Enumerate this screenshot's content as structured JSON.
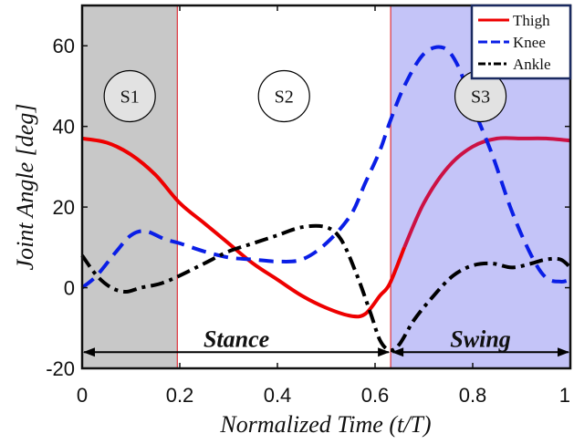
{
  "chart_data": {
    "type": "line",
    "xlabel": "Normalized Time (t/T)",
    "ylabel_word": "Joint Angle",
    "ylabel_unit": "[deg]",
    "xlim": [
      0,
      1
    ],
    "ylim": [
      -20,
      70
    ],
    "xticks": [
      0,
      0.2,
      0.4,
      0.6,
      0.8,
      1
    ],
    "xtick_labels": [
      "0",
      "0.2",
      "0.4",
      "0.6",
      "0.8",
      "1"
    ],
    "yticks": [
      -20,
      0,
      20,
      40,
      60
    ],
    "ytick_labels": [
      "-20",
      "0",
      "20",
      "40",
      "60"
    ],
    "grid": false,
    "legend_position": "top-right",
    "phases": [
      {
        "label": "S1",
        "x_start": 0,
        "x_end": 0.195,
        "color": "#c8c8c8"
      },
      {
        "label": "S2",
        "x_start": 0.195,
        "x_end": 0.632,
        "color": "#ffffff"
      },
      {
        "label": "S3",
        "x_start": 0.632,
        "x_end": 1,
        "color": "#c4c4f8"
      }
    ],
    "spans": [
      {
        "label": "Stance",
        "x_start": 0,
        "x_end": 0.632,
        "y": -16
      },
      {
        "label": "Swing",
        "x_start": 0.632,
        "x_end": 1,
        "y": -16
      }
    ],
    "series": [
      {
        "name": "Thigh",
        "color": "#ee0000",
        "color_swing": "#cc1144",
        "dash": "solid",
        "x": [
          0,
          0.05,
          0.1,
          0.15,
          0.2,
          0.25,
          0.3,
          0.35,
          0.4,
          0.45,
          0.5,
          0.55,
          0.58,
          0.61,
          0.63,
          0.66,
          0.7,
          0.75,
          0.8,
          0.85,
          0.9,
          0.95,
          1
        ],
        "y": [
          37,
          36,
          33,
          28,
          21,
          16,
          11,
          6,
          2,
          -2,
          -5,
          -7,
          -6.5,
          -2,
          1,
          10,
          21,
          30,
          35,
          37,
          37,
          37,
          36.5
        ]
      },
      {
        "name": "Knee",
        "color": "#0a1ee6",
        "dash": "dashed",
        "x": [
          0,
          0.03,
          0.07,
          0.1,
          0.13,
          0.17,
          0.2,
          0.25,
          0.3,
          0.35,
          0.4,
          0.45,
          0.5,
          0.55,
          0.58,
          0.61,
          0.63,
          0.66,
          0.7,
          0.74,
          0.77,
          0.8,
          0.84,
          0.88,
          0.92,
          0.95,
          0.98,
          1
        ],
        "y": [
          0,
          3,
          9,
          13,
          14,
          12,
          11,
          9,
          7.5,
          7,
          6.5,
          7,
          11,
          18,
          26,
          34,
          41,
          50,
          58,
          59.5,
          55,
          45,
          33,
          19,
          8,
          2.5,
          1.5,
          2
        ]
      },
      {
        "name": "Ankle",
        "color": "#000000",
        "dash": "dashdot",
        "x": [
          0,
          0.03,
          0.06,
          0.09,
          0.12,
          0.16,
          0.2,
          0.25,
          0.3,
          0.35,
          0.4,
          0.45,
          0.5,
          0.53,
          0.56,
          0.59,
          0.61,
          0.63,
          0.65,
          0.68,
          0.72,
          0.76,
          0.8,
          0.84,
          0.88,
          0.92,
          0.95,
          0.98,
          1
        ],
        "y": [
          8,
          3,
          0,
          -1,
          0,
          1,
          3,
          6,
          9,
          11,
          13,
          15,
          15,
          12,
          4,
          -6,
          -13,
          -15.5,
          -14,
          -8,
          -2,
          3,
          5.5,
          6,
          5,
          6,
          7,
          7,
          5
        ]
      }
    ]
  }
}
